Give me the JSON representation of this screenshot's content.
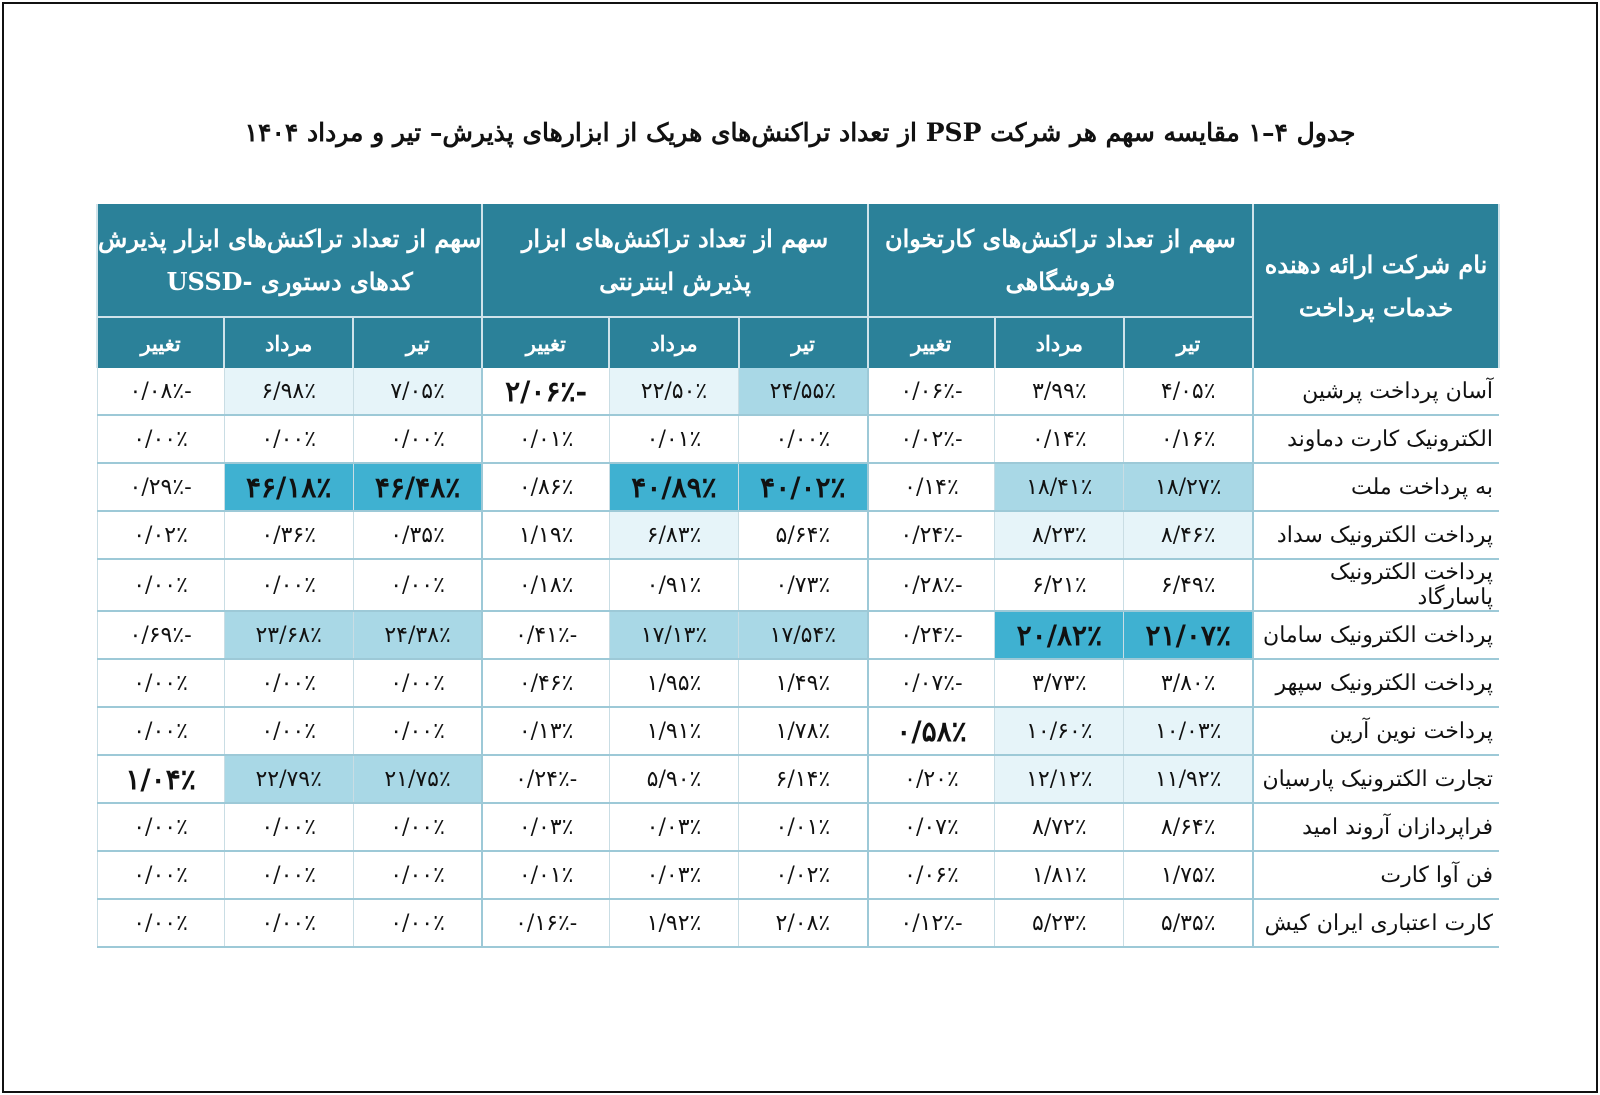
{
  "caption": "جدول ۴–۱ مقایسه سهم هر شرکت PSP از تعداد تراکنش‌های هریک از ابزارهای پذیرش– تیر و مرداد ۱۴۰۴",
  "headers": {
    "company": "نام شرکت ارائه دهنده خدمات پرداخت",
    "pos": "سهم از تعداد تراکنش‌های کارتخوان فروشگاهی",
    "internet": "سهم از تعداد تراکنش‌های ابزار پذیرش اینترنتی",
    "ussd": "سهم از تعداد تراکنش‌های ابزار پذیرش کدهای دستوری -USSD",
    "tir": "تیر",
    "mordad": "مرداد",
    "change": "تغییر"
  },
  "colors": {
    "header_bg": "#2b8199",
    "highlight_light": "#e6f4f9",
    "highlight_mid": "#a9d8e6",
    "highlight_strong": "#3fb1d1",
    "negative_red": "#e2201e",
    "positive_green": "#5fb03a"
  },
  "rows": [
    {
      "company": "آسان پرداخت پرشین",
      "pos_tir": "۴/۰۵٪",
      "pos_mordad": "۳/۹۹٪",
      "pos_change": "-۰/۰۶٪",
      "int_tir": "۲۴/۵۵٪",
      "int_mordad": "۲۲/۵۰٪",
      "int_change": "-۲/۰۶٪",
      "ussd_tir": "۷/۰۵٪",
      "ussd_mordad": "۶/۹۸٪",
      "ussd_change": "-۰/۰۸٪"
    },
    {
      "company": "الکترونیک کارت دماوند",
      "pos_tir": "۰/۱۶٪",
      "pos_mordad": "۰/۱۴٪",
      "pos_change": "-۰/۰۲٪",
      "int_tir": "۰/۰۰٪",
      "int_mordad": "۰/۰۱٪",
      "int_change": "۰/۰۱٪",
      "ussd_tir": "۰/۰۰٪",
      "ussd_mordad": "۰/۰۰٪",
      "ussd_change": "۰/۰۰٪"
    },
    {
      "company": "به پرداخت ملت",
      "pos_tir": "۱۸/۲۷٪",
      "pos_mordad": "۱۸/۴۱٪",
      "pos_change": "۰/۱۴٪",
      "int_tir": "۴۰/۰۲٪",
      "int_mordad": "۴۰/۸۹٪",
      "int_change": "۰/۸۶٪",
      "ussd_tir": "۴۶/۴۸٪",
      "ussd_mordad": "۴۶/۱۸٪",
      "ussd_change": "-۰/۲۹٪"
    },
    {
      "company": "پرداخت الکترونیک سداد",
      "pos_tir": "۸/۴۶٪",
      "pos_mordad": "۸/۲۳٪",
      "pos_change": "-۰/۲۴٪",
      "int_tir": "۵/۶۴٪",
      "int_mordad": "۶/۸۳٪",
      "int_change": "۱/۱۹٪",
      "ussd_tir": "۰/۳۵٪",
      "ussd_mordad": "۰/۳۶٪",
      "ussd_change": "۰/۰۲٪"
    },
    {
      "company": "پرداخت الکترونیک پاسارگاد",
      "pos_tir": "۶/۴۹٪",
      "pos_mordad": "۶/۲۱٪",
      "pos_change": "-۰/۲۸٪",
      "int_tir": "۰/۷۳٪",
      "int_mordad": "۰/۹۱٪",
      "int_change": "۰/۱۸٪",
      "ussd_tir": "۰/۰۰٪",
      "ussd_mordad": "۰/۰۰٪",
      "ussd_change": "۰/۰۰٪"
    },
    {
      "company": "پرداخت الکترونیک سامان",
      "pos_tir": "۲۱/۰۷٪",
      "pos_mordad": "۲۰/۸۲٪",
      "pos_change": "-۰/۲۴٪",
      "int_tir": "۱۷/۵۴٪",
      "int_mordad": "۱۷/۱۳٪",
      "int_change": "-۰/۴۱٪",
      "ussd_tir": "۲۴/۳۸٪",
      "ussd_mordad": "۲۳/۶۸٪",
      "ussd_change": "-۰/۶۹٪"
    },
    {
      "company": "پرداخت الکترونیک سپهر",
      "pos_tir": "۳/۸۰٪",
      "pos_mordad": "۳/۷۳٪",
      "pos_change": "-۰/۰۷٪",
      "int_tir": "۱/۴۹٪",
      "int_mordad": "۱/۹۵٪",
      "int_change": "۰/۴۶٪",
      "ussd_tir": "۰/۰۰٪",
      "ussd_mordad": "۰/۰۰٪",
      "ussd_change": "۰/۰۰٪"
    },
    {
      "company": "پرداخت نوین آرین",
      "pos_tir": "۱۰/۰۳٪",
      "pos_mordad": "۱۰/۶۰٪",
      "pos_change": "۰/۵۸٪",
      "int_tir": "۱/۷۸٪",
      "int_mordad": "۱/۹۱٪",
      "int_change": "۰/۱۳٪",
      "ussd_tir": "۰/۰۰٪",
      "ussd_mordad": "۰/۰۰٪",
      "ussd_change": "۰/۰۰٪"
    },
    {
      "company": "تجارت الکترونیک پارسیان",
      "pos_tir": "۱۱/۹۲٪",
      "pos_mordad": "۱۲/۱۲٪",
      "pos_change": "۰/۲۰٪",
      "int_tir": "۶/۱۴٪",
      "int_mordad": "۵/۹۰٪",
      "int_change": "-۰/۲۴٪",
      "ussd_tir": "۲۱/۷۵٪",
      "ussd_mordad": "۲۲/۷۹٪",
      "ussd_change": "۱/۰۴٪"
    },
    {
      "company": "فراپردازان آروند امید",
      "pos_tir": "۸/۶۴٪",
      "pos_mordad": "۸/۷۲٪",
      "pos_change": "۰/۰۷٪",
      "int_tir": "۰/۰۱٪",
      "int_mordad": "۰/۰۳٪",
      "int_change": "۰/۰۳٪",
      "ussd_tir": "۰/۰۰٪",
      "ussd_mordad": "۰/۰۰٪",
      "ussd_change": "۰/۰۰٪"
    },
    {
      "company": "فن آوا کارت",
      "pos_tir": "۱/۷۵٪",
      "pos_mordad": "۱/۸۱٪",
      "pos_change": "۰/۰۶٪",
      "int_tir": "۰/۰۲٪",
      "int_mordad": "۰/۰۳٪",
      "int_change": "۰/۰۱٪",
      "ussd_tir": "۰/۰۰٪",
      "ussd_mordad": "۰/۰۰٪",
      "ussd_change": "۰/۰۰٪"
    },
    {
      "company": "کارت اعتباری ایران کیش",
      "pos_tir": "۵/۳۵٪",
      "pos_mordad": "۵/۲۳٪",
      "pos_change": "-۰/۱۲٪",
      "int_tir": "۲/۰۸٪",
      "int_mordad": "۱/۹۲٪",
      "int_change": "-۰/۱۶٪",
      "ussd_tir": "۰/۰۰٪",
      "ussd_mordad": "۰/۰۰٪",
      "ussd_change": "۰/۰۰٪"
    }
  ]
}
